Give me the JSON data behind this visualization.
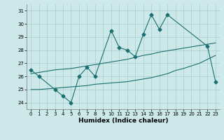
{
  "title": "",
  "xlabel": "Humidex (Indice chaleur)",
  "background_color": "#cce8e8",
  "line_color": "#1a7070",
  "grid_color": "#aacccc",
  "xlim": [
    -0.5,
    23.5
  ],
  "ylim": [
    23.5,
    31.5
  ],
  "yticks": [
    24,
    25,
    26,
    27,
    28,
    29,
    30,
    31
  ],
  "xticks": [
    0,
    1,
    2,
    3,
    4,
    5,
    6,
    7,
    8,
    9,
    10,
    11,
    12,
    13,
    14,
    15,
    16,
    17,
    18,
    19,
    20,
    21,
    22,
    23
  ],
  "series1_x": [
    0,
    1,
    3,
    4,
    5,
    6,
    7,
    8,
    10,
    11,
    12,
    13,
    14,
    15,
    16,
    17,
    22,
    23
  ],
  "series1_y": [
    26.5,
    26.0,
    25.0,
    24.5,
    24.0,
    26.0,
    26.7,
    26.0,
    29.5,
    28.2,
    28.0,
    27.5,
    29.2,
    30.7,
    29.6,
    30.7,
    28.3,
    25.6
  ],
  "series2_x": [
    0,
    1,
    2,
    3,
    4,
    5,
    6,
    7,
    8,
    9,
    10,
    11,
    12,
    13,
    14,
    15,
    16,
    17,
    18,
    19,
    20,
    21,
    22,
    23
  ],
  "series2_y": [
    25.0,
    25.0,
    25.05,
    25.1,
    25.15,
    25.2,
    25.25,
    25.3,
    25.4,
    25.45,
    25.5,
    25.55,
    25.6,
    25.7,
    25.8,
    25.9,
    26.05,
    26.2,
    26.45,
    26.6,
    26.8,
    27.0,
    27.3,
    27.6
  ],
  "series3_x": [
    0,
    1,
    2,
    3,
    4,
    5,
    6,
    7,
    8,
    9,
    10,
    11,
    12,
    13,
    14,
    15,
    16,
    17,
    18,
    19,
    20,
    21,
    22,
    23
  ],
  "series3_y": [
    26.2,
    26.3,
    26.4,
    26.5,
    26.55,
    26.6,
    26.7,
    26.8,
    26.9,
    27.0,
    27.1,
    27.2,
    27.3,
    27.45,
    27.6,
    27.7,
    27.85,
    27.95,
    28.05,
    28.15,
    28.25,
    28.35,
    28.45,
    28.55
  ]
}
